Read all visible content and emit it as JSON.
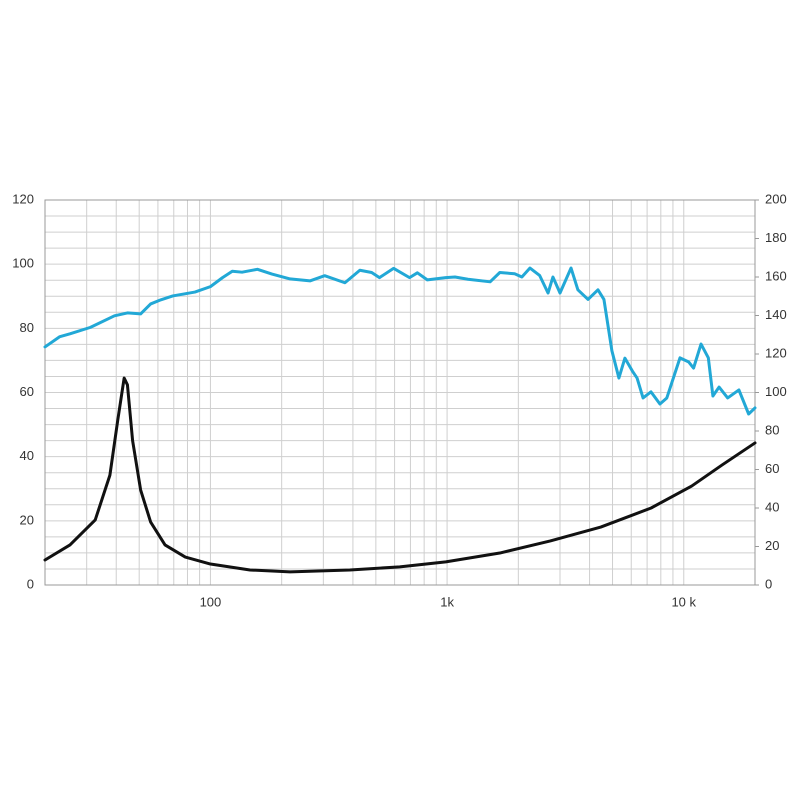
{
  "chart_data": {
    "type": "line",
    "xscale": "log",
    "xlim": [
      20,
      20000
    ],
    "xticks": [
      100,
      {
        "value": 1000,
        "label": "1k"
      },
      {
        "value": 10000,
        "label": "10 k"
      }
    ],
    "xminor": [
      20,
      30,
      40,
      50,
      60,
      70,
      80,
      90,
      200,
      300,
      400,
      500,
      600,
      700,
      800,
      900,
      2000,
      3000,
      4000,
      5000,
      6000,
      7000,
      8000,
      9000,
      20000
    ],
    "ylim": [
      0,
      120
    ],
    "yticks": [
      0,
      20,
      40,
      60,
      80,
      100,
      120
    ],
    "yminor": [
      5,
      10,
      15,
      25,
      30,
      35,
      45,
      50,
      55,
      65,
      70,
      75,
      85,
      90,
      95,
      105,
      110,
      115
    ],
    "y2lim": [
      0,
      200
    ],
    "y2ticks": [
      0,
      20,
      40,
      60,
      80,
      100,
      120,
      140,
      160,
      180,
      200
    ],
    "grid": true,
    "series": [
      {
        "color": "#22a8d6",
        "x": [
          20,
          23.1,
          25.5,
          31.1,
          39.3,
          44.6,
          50.7,
          55.9,
          61.8,
          69.3,
          86,
          100,
          112.5,
          123.7,
          136,
          158,
          182,
          217,
          264,
          304,
          370,
          428,
          480,
          518,
          594,
          694,
          749,
          825,
          987,
          1080,
          1225,
          1520,
          1670,
          1930,
          2070,
          2240,
          2460,
          2670,
          2800,
          3000,
          3340,
          3570,
          3940,
          4340,
          4600,
          4970,
          5320,
          5640,
          6100,
          6350,
          6730,
          7270,
          7930,
          8480,
          9640,
          10500,
          11000,
          11830,
          12700,
          13280,
          14100,
          15330,
          17100,
          18800,
          20000
        ],
        "values": [
          74.2,
          77.4,
          78.3,
          80.3,
          83.9,
          84.8,
          84.5,
          87.6,
          88.9,
          90.1,
          91.3,
          93,
          95.8,
          97.8,
          97.5,
          98.4,
          96.9,
          95.4,
          94.8,
          96.4,
          94.2,
          98.1,
          97.4,
          95.8,
          98.7,
          95.8,
          97.3,
          95.1,
          95.8,
          96,
          95.3,
          94.5,
          97.4,
          97,
          96,
          98.8,
          96.5,
          91,
          96,
          91,
          98.8,
          92,
          89,
          92,
          89,
          73,
          64.5,
          70.7,
          66.4,
          64.5,
          58.3,
          60.2,
          56.4,
          58.3,
          70.8,
          69.5,
          67.6,
          75.1,
          70.8,
          58.9,
          61.7,
          58.3,
          60.8,
          53.3,
          55.2
        ]
      },
      {
        "color": "#111111",
        "axis": "y2",
        "x": [
          20,
          25.5,
          32.6,
          37.6,
          40.6,
          43.2,
          44.6,
          46.9,
          50.7,
          55.9,
          64.3,
          78.3,
          100,
          147,
          217,
          388,
          631,
          987,
          1670,
          2730,
          4460,
          7280,
          10800,
          14500,
          20000
        ],
        "values": [
          13,
          20.8,
          33.8,
          57,
          85.7,
          107.5,
          104,
          75,
          49.4,
          32.7,
          20.8,
          14.5,
          10.9,
          7.8,
          6.8,
          7.8,
          9.4,
          12,
          16.6,
          22.9,
          30.1,
          40,
          51.4,
          62.3,
          73.8
        ]
      }
    ]
  }
}
